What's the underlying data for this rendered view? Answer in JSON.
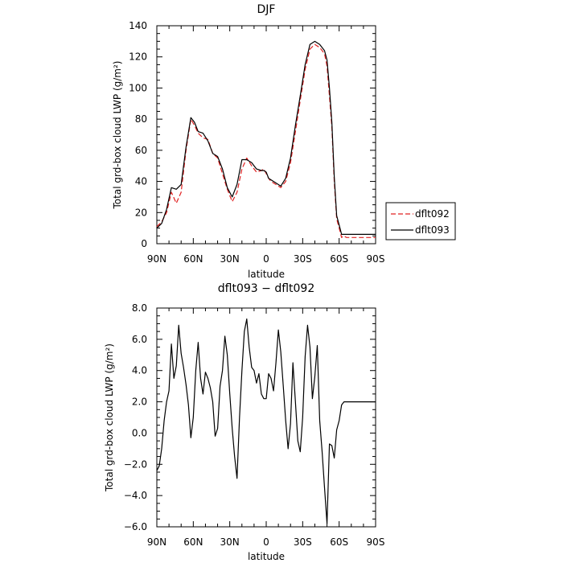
{
  "chart_data": [
    {
      "type": "line",
      "title": "DJF",
      "xlabel": "latitude",
      "ylabel": "Total grd-box cloud LWP (g/m²)",
      "xlim": [
        90,
        -90
      ],
      "ylim": [
        0,
        140
      ],
      "x_tick_values": [
        90,
        60,
        30,
        0,
        -30,
        -60,
        -90
      ],
      "x_tick_labels": [
        "90N",
        "60N",
        "30N",
        "0",
        "30S",
        "60S",
        "90S"
      ],
      "y_tick_values": [
        0,
        20,
        40,
        60,
        80,
        100,
        120,
        140
      ],
      "y_tick_labels": [
        "0",
        "20",
        "40",
        "60",
        "80",
        "100",
        "120",
        "140"
      ],
      "legend_position": "right",
      "x": [
        90,
        86,
        82,
        78,
        74,
        70,
        66,
        62,
        59,
        56,
        52,
        48,
        44,
        40,
        36,
        32,
        28,
        24,
        20,
        16,
        12,
        8,
        4,
        2,
        0,
        -2,
        -4,
        -8,
        -12,
        -16,
        -20,
        -24,
        -28,
        -32,
        -36,
        -40,
        -44,
        -48,
        -50,
        -52,
        -54,
        -56,
        -58,
        -60,
        -62,
        -64,
        -66,
        -70,
        -74,
        -78,
        -82,
        -86,
        -90
      ],
      "series": [
        {
          "name": "dflt092",
          "color": "#e02020",
          "dash": "6,3",
          "values": [
            11,
            14,
            20,
            33,
            26,
            33,
            60,
            80,
            76,
            71,
            68,
            67,
            58,
            55,
            45,
            35,
            27,
            33,
            48,
            55,
            50,
            46,
            47,
            48,
            45,
            42,
            40,
            38,
            36,
            40,
            52,
            72,
            92,
            112,
            125,
            128,
            126,
            122,
            114,
            95,
            75,
            40,
            16,
            10,
            4,
            5,
            4,
            4,
            4,
            4,
            4,
            4,
            4
          ]
        },
        {
          "name": "dflt093",
          "color": "#000000",
          "dash": "none",
          "values": [
            10,
            13,
            22,
            36,
            35,
            38,
            62,
            81,
            78,
            72,
            71,
            66,
            58,
            56,
            48,
            36,
            30,
            38,
            54,
            54,
            52,
            48,
            47,
            47,
            46,
            42,
            41,
            39,
            37,
            42,
            55,
            76,
            95,
            115,
            128,
            130,
            128,
            124,
            118,
            100,
            78,
            43,
            18,
            12,
            6,
            6,
            6,
            6,
            6,
            6,
            6,
            6,
            6
          ]
        }
      ]
    },
    {
      "type": "line",
      "title": "dflt093 − dflt092",
      "xlabel": "latitude",
      "ylabel": "Total grd-box cloud LWP (g/m²)",
      "xlim": [
        90,
        -90
      ],
      "ylim": [
        -6,
        8
      ],
      "x_tick_values": [
        90,
        60,
        30,
        0,
        -30,
        -60,
        -90
      ],
      "x_tick_labels": [
        "90N",
        "60N",
        "30N",
        "0",
        "30S",
        "60S",
        "90S"
      ],
      "y_tick_values": [
        -6,
        -4,
        -2,
        0,
        2,
        4,
        6,
        8
      ],
      "y_tick_labels": [
        "−6.0",
        "−4.0",
        "−2.0",
        "0.0",
        "2.0",
        "4.0",
        "6.0",
        "8.0"
      ],
      "series": [
        {
          "color": "#000000",
          "x": [
            90,
            88,
            86,
            84,
            82,
            80,
            78,
            76,
            74,
            72,
            70,
            68,
            66,
            64,
            62,
            60,
            58,
            56,
            54,
            52,
            50,
            48,
            46,
            44,
            42,
            40,
            38,
            36,
            34,
            32,
            30,
            28,
            26,
            24,
            22,
            20,
            18,
            16,
            14,
            12,
            10,
            8,
            6,
            4,
            2,
            0,
            -2,
            -4,
            -6,
            -8,
            -10,
            -12,
            -14,
            -16,
            -18,
            -20,
            -22,
            -24,
            -26,
            -28,
            -30,
            -32,
            -34,
            -36,
            -38,
            -40,
            -42,
            -44,
            -46,
            -48,
            -50,
            -52,
            -54,
            -56,
            -58,
            -60,
            -62,
            -64,
            -66,
            -68,
            -70,
            -72,
            -74,
            -76,
            -78,
            -80,
            -82,
            -84,
            -86,
            -88,
            -90
          ],
          "values": [
            -2.4,
            -2.1,
            -1.0,
            0.8,
            2.0,
            2.7,
            5.7,
            3.5,
            4.3,
            6.9,
            5.1,
            4.2,
            3.1,
            1.8,
            -0.3,
            1.0,
            4.0,
            5.8,
            3.5,
            2.5,
            3.9,
            3.5,
            2.9,
            2.0,
            -0.2,
            0.3,
            3.0,
            4.0,
            6.2,
            5.0,
            2.5,
            0.3,
            -1.5,
            -2.9,
            1.0,
            4.0,
            6.5,
            7.3,
            5.5,
            4.2,
            4.0,
            3.2,
            3.8,
            2.5,
            2.2,
            2.2,
            3.8,
            3.5,
            2.7,
            4.5,
            6.6,
            5.2,
            3.0,
            0.8,
            -1.0,
            0.6,
            4.5,
            2.0,
            -0.5,
            -1.2,
            1.0,
            4.9,
            6.9,
            5.5,
            2.2,
            3.6,
            5.6,
            0.8,
            -1.2,
            -3.5,
            -5.8,
            -0.7,
            -0.8,
            -1.6,
            0.2,
            0.8,
            1.8,
            2.0,
            2.0,
            2.0,
            2.0,
            2.0,
            2.0,
            2.0,
            2.0,
            2.0,
            2.0,
            2.0,
            2.0,
            2.0,
            2.0
          ]
        }
      ]
    }
  ]
}
